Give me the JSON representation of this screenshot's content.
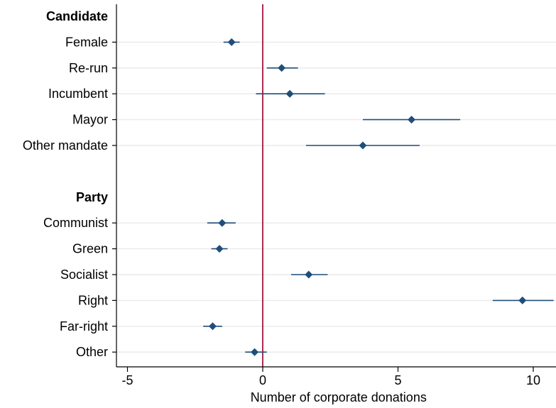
{
  "chart_data": {
    "type": "scatter",
    "subtype": "coefficient-plot",
    "title": "",
    "xlabel": "Number of corporate donations",
    "ylabel": "",
    "xlim": [
      -5.3,
      10.8
    ],
    "xticks": [
      -5,
      0,
      5,
      10
    ],
    "reference_line": {
      "x": 0,
      "color": "#a2143c"
    },
    "marker_color": "#1f4e79",
    "grid": true,
    "groups": [
      {
        "header": "Candidate",
        "items": [
          {
            "label": "Female",
            "estimate": -1.15,
            "ci": [
              -1.45,
              -0.85
            ]
          },
          {
            "label": "Re-run",
            "estimate": 0.7,
            "ci": [
              0.15,
              1.3
            ]
          },
          {
            "label": "Incumbent",
            "estimate": 1.0,
            "ci": [
              -0.25,
              2.3
            ]
          },
          {
            "label": "Mayor",
            "estimate": 5.5,
            "ci": [
              3.7,
              7.3
            ]
          },
          {
            "label": "Other mandate",
            "estimate": 3.7,
            "ci": [
              1.6,
              5.8
            ]
          }
        ]
      },
      {
        "header": "Party",
        "items": [
          {
            "label": "Communist",
            "estimate": -1.5,
            "ci": [
              -2.05,
              -1.0
            ]
          },
          {
            "label": "Green",
            "estimate": -1.6,
            "ci": [
              -1.9,
              -1.3
            ]
          },
          {
            "label": "Socialist",
            "estimate": 1.7,
            "ci": [
              1.05,
              2.4
            ]
          },
          {
            "label": "Right",
            "estimate": 9.6,
            "ci": [
              8.5,
              10.75
            ]
          },
          {
            "label": "Far-right",
            "estimate": -1.85,
            "ci": [
              -2.2,
              -1.5
            ]
          },
          {
            "label": "Other",
            "estimate": -0.3,
            "ci": [
              -0.65,
              0.15
            ]
          }
        ]
      }
    ]
  }
}
